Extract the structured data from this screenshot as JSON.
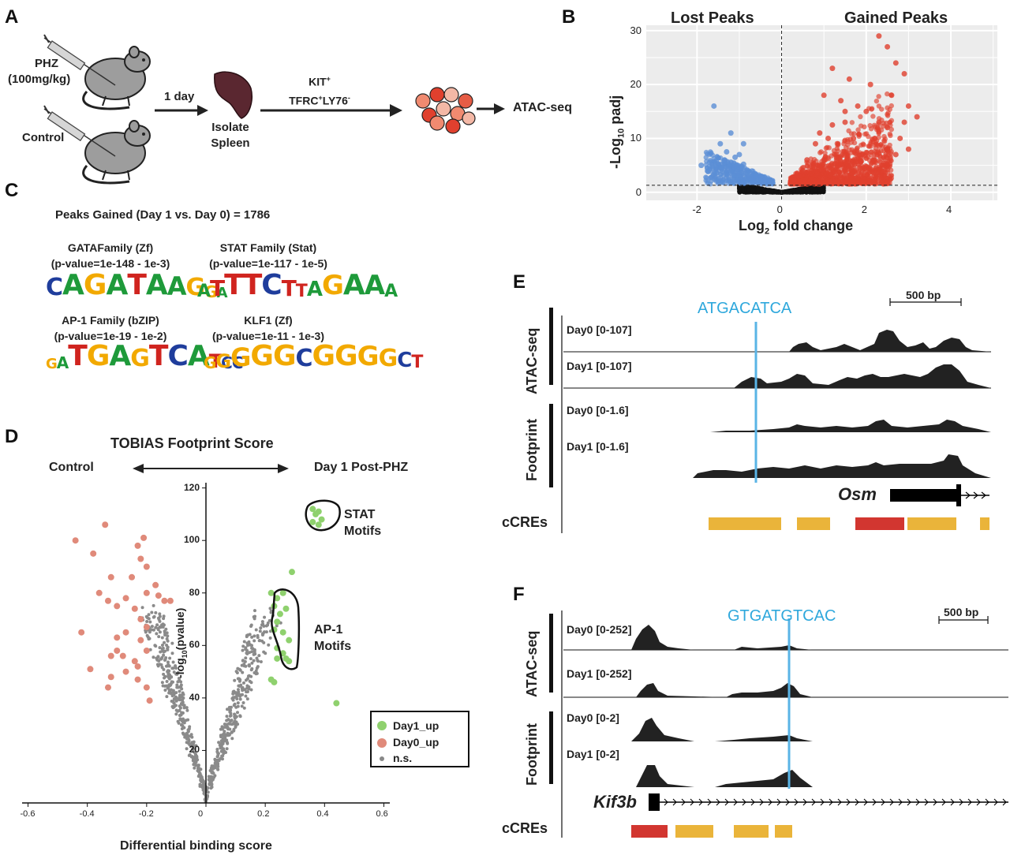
{
  "panels": {
    "A": "A",
    "B": "B",
    "C": "C",
    "D": "D",
    "E": "E",
    "F": "F"
  },
  "panelA": {
    "phz_label": "PHZ",
    "phz_dose": "(100mg/kg)",
    "control_label": "Control",
    "time_label": "1 day",
    "spleen_label_1": "Isolate",
    "spleen_label_2": "Spleen",
    "sort_label_1": "KIT",
    "sort_label_1_sup": "+",
    "sort_label_2a": "TFRC",
    "sort_label_2a_sup": "+",
    "sort_label_2b": "LY76",
    "sort_label_2b_sup": "-",
    "assay_label": "ATAC-seq"
  },
  "panelB": {
    "left_title": "Lost Peaks",
    "right_title": "Gained Peaks",
    "ylabel_prefix": "-Log",
    "ylabel_sub": "10",
    "ylabel_suffix": " padj",
    "xlabel_prefix": "Log",
    "xlabel_sub": "2",
    "xlabel_suffix": " fold change",
    "x_ticks": [
      "-2",
      "0",
      "2",
      "4"
    ],
    "y_ticks": [
      "0",
      "10",
      "20",
      "30"
    ],
    "colors": {
      "lost": "#5b8fd6",
      "gained": "#e0402e",
      "ns": "#111111"
    }
  },
  "panelC": {
    "title": "Peaks Gained (Day 1 vs. Day 0) = 1786",
    "motifs": [
      {
        "name": "GATAFamily (Zf)",
        "pvalue": "(p-value=1e-148 - 1e-3)",
        "logo": "CAGATAAGGA"
      },
      {
        "name": "STAT Family (Stat)",
        "pvalue": "(p-value=1e-117 - 1e-5)",
        "logo": "ATTTCTTAGAAA"
      },
      {
        "name": "AP-1 Family (bZIP)",
        "pvalue": "(p-value=1e-19 - 1e-2)",
        "logo": "GATGAGTCATCC"
      },
      {
        "name": "KLF1 (Zf)",
        "pvalue": "(p-value=1e-11 - 1e-3)",
        "logo": "GGGGGCGGGGCT"
      }
    ]
  },
  "panelD": {
    "title": "TOBIAS Footprint Score",
    "left_label": "Control",
    "right_label": "Day 1 Post-PHZ",
    "stat_label_1": "STAT",
    "stat_label_2": "Motifs",
    "ap1_label_1": "AP-1",
    "ap1_label_2": "Motifs",
    "ylabel_prefix": "-log",
    "ylabel_sub": "10",
    "ylabel_suffix": "(pvalue)",
    "xlabel": "Differential binding score",
    "x_ticks": [
      "-0.6",
      "-0.4",
      "-0.2",
      "0",
      "0.2",
      "0.4",
      "0.6"
    ],
    "y_ticks": [
      "20",
      "40",
      "60",
      "80",
      "100",
      "120"
    ],
    "legend": [
      {
        "label": "Day1_up",
        "color": "#8fd16e"
      },
      {
        "label": "Day0_up",
        "color": "#e08a7a"
      },
      {
        "label": "n.s.",
        "color": "#888888"
      }
    ]
  },
  "panelE": {
    "motif": "ATGACATCA",
    "scale": "500 bp",
    "group_atac": "ATAC-seq",
    "group_fp": "Footprint",
    "tracks": [
      "Day0 [0-107]",
      "Day1 [0-107]",
      "Day0 [0-1.6]",
      "Day1 [0-1.6]"
    ],
    "gene": "Osm",
    "ccre_label": "cCREs"
  },
  "panelF": {
    "motif": "GTGATGTCAC",
    "scale": "500 bp",
    "group_atac": "ATAC-seq",
    "group_fp": "Footprint",
    "tracks": [
      "Day0 [0-252]",
      "Day1 [0-252]",
      "Day0 [0-2]",
      "Day1 [0-2]"
    ],
    "gene": "Kif3b",
    "ccre_label": "cCREs"
  },
  "chart_data": [
    {
      "type": "scatter",
      "panel": "B",
      "title": "",
      "xlabel": "Log2 fold change",
      "ylabel": "-Log10 padj",
      "xlim": [
        -3.2,
        5.1
      ],
      "ylim": [
        -1.5,
        31
      ],
      "threshold_y": 1.3,
      "series": [
        {
          "name": "Lost Peaks",
          "points": [
            [
              -1.6,
              16
            ],
            [
              -1.2,
              11
            ],
            [
              -1.45,
              9
            ],
            [
              -1.7,
              5.6
            ],
            [
              -1.5,
              5.3
            ],
            [
              -1.3,
              7.5
            ],
            [
              -1.1,
              6.5
            ],
            [
              -0.9,
              5.2
            ],
            [
              -1.0,
              4.5
            ],
            [
              -1.35,
              6
            ],
            [
              -1.55,
              4.6
            ],
            [
              -1.25,
              4.8
            ],
            [
              -0.8,
              3.5
            ],
            [
              -0.6,
              3
            ],
            [
              -0.5,
              2.2
            ],
            [
              -1.9,
              5.0
            ],
            [
              -1.0,
              7
            ],
            [
              -0.9,
              9
            ]
          ]
        },
        {
          "name": "Gained Peaks",
          "points": [
            [
              2.3,
              29
            ],
            [
              2.5,
              27
            ],
            [
              2.7,
              24
            ],
            [
              2.9,
              22
            ],
            [
              3.2,
              14
            ],
            [
              2.6,
              18
            ],
            [
              2.1,
              20
            ],
            [
              1.6,
              21
            ],
            [
              1.2,
              23
            ],
            [
              1.0,
              18
            ],
            [
              1.4,
              17
            ],
            [
              1.8,
              16
            ],
            [
              2.0,
              15
            ],
            [
              2.3,
              13
            ],
            [
              2.5,
              12
            ],
            [
              1.2,
              12.5
            ],
            [
              1.5,
              13
            ],
            [
              0.9,
              11
            ],
            [
              1.1,
              10
            ],
            [
              0.8,
              9
            ],
            [
              1.7,
              10
            ],
            [
              2.2,
              10
            ],
            [
              2.8,
              10
            ],
            [
              2.7,
              7
            ],
            [
              2.5,
              8
            ],
            [
              1.9,
              7
            ],
            [
              0.6,
              6
            ],
            [
              0.5,
              4
            ],
            [
              0.4,
              3
            ],
            [
              0.3,
              2.2
            ],
            [
              1.0,
              6
            ],
            [
              1.3,
              7
            ],
            [
              3.0,
              8
            ],
            [
              2.9,
              13
            ],
            [
              3.0,
              16
            ],
            [
              1.5,
              15
            ]
          ]
        }
      ]
    },
    {
      "type": "scatter",
      "panel": "D",
      "title": "TOBIAS Footprint Score",
      "xlabel": "Differential binding score",
      "ylabel": "-log10(pvalue)",
      "xlim": [
        -0.62,
        0.62
      ],
      "ylim": [
        0,
        122
      ],
      "series": [
        {
          "name": "Day1_up",
          "points": [
            [
              0.36,
              112
            ],
            [
              0.38,
              111
            ],
            [
              0.37,
              110
            ],
            [
              0.39,
              108
            ],
            [
              0.36,
              107
            ],
            [
              0.38,
              106
            ],
            [
              0.29,
              88
            ],
            [
              0.22,
              80
            ],
            [
              0.24,
              78
            ],
            [
              0.26,
              80
            ],
            [
              0.23,
              75
            ],
            [
              0.27,
              74
            ],
            [
              0.25,
              72
            ],
            [
              0.24,
              69
            ],
            [
              0.23,
              66
            ],
            [
              0.26,
              65
            ],
            [
              0.28,
              62
            ],
            [
              0.24,
              59
            ],
            [
              0.26,
              57
            ],
            [
              0.27,
              55
            ],
            [
              0.28,
              54
            ],
            [
              0.24,
              55
            ],
            [
              0.23,
              46
            ],
            [
              0.22,
              47
            ],
            [
              0.44,
              38
            ]
          ]
        },
        {
          "name": "Day0_up",
          "points": [
            [
              -0.44,
              100
            ],
            [
              -0.34,
              106
            ],
            [
              -0.21,
              101
            ],
            [
              -0.23,
              98
            ],
            [
              -0.38,
              95
            ],
            [
              -0.22,
              93
            ],
            [
              -0.2,
              90
            ],
            [
              -0.25,
              86
            ],
            [
              -0.32,
              86
            ],
            [
              -0.17,
              83
            ],
            [
              -0.2,
              80
            ],
            [
              -0.16,
              79
            ],
            [
              -0.14,
              77
            ],
            [
              -0.12,
              77
            ],
            [
              -0.27,
              78
            ],
            [
              -0.36,
              80
            ],
            [
              -0.33,
              77
            ],
            [
              -0.3,
              75
            ],
            [
              -0.24,
              74
            ],
            [
              -0.22,
              70
            ],
            [
              -0.2,
              67
            ],
            [
              -0.27,
              65
            ],
            [
              -0.3,
              63
            ],
            [
              -0.42,
              65
            ],
            [
              -0.22,
              62
            ],
            [
              -0.2,
              58
            ],
            [
              -0.3,
              58
            ],
            [
              -0.28,
              56
            ],
            [
              -0.24,
              54
            ],
            [
              -0.32,
              56
            ],
            [
              -0.23,
              52
            ],
            [
              -0.39,
              51
            ],
            [
              -0.27,
              50
            ],
            [
              -0.23,
              47
            ],
            [
              -0.2,
              44
            ],
            [
              -0.33,
              44
            ],
            [
              -0.19,
              39
            ],
            [
              -0.32,
              48
            ]
          ]
        }
      ]
    }
  ]
}
